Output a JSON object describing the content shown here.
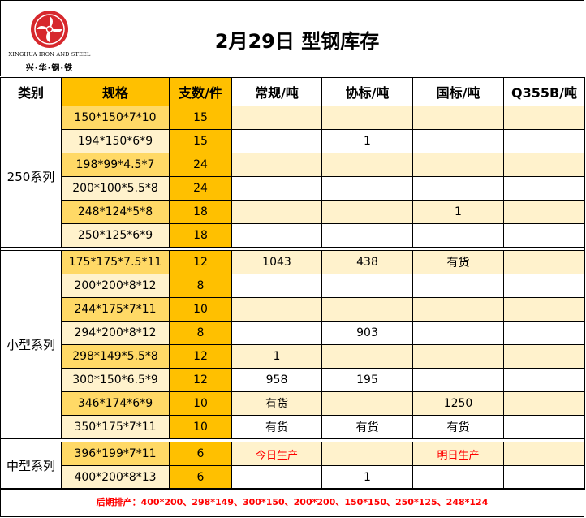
{
  "logo": {
    "name_en": "XINGHUA IRON AND STEEL",
    "name_cn": "兴·华·钢·铁"
  },
  "title": "2月29日 型钢库存",
  "headers": [
    "类别",
    "规格",
    "支数/件",
    "常规/吨",
    "协标/吨",
    "国标/吨",
    "Q355B/吨"
  ],
  "groups": [
    {
      "category": "250系列",
      "rows": [
        {
          "spec": "150*150*7*10",
          "count": "15",
          "regular": "",
          "assoc": "",
          "national": "",
          "q355b": ""
        },
        {
          "spec": "194*150*6*9",
          "count": "15",
          "regular": "",
          "assoc": "1",
          "national": "",
          "q355b": ""
        },
        {
          "spec": "198*99*4.5*7",
          "count": "24",
          "regular": "",
          "assoc": "",
          "national": "",
          "q355b": ""
        },
        {
          "spec": "200*100*5.5*8",
          "count": "24",
          "regular": "",
          "assoc": "",
          "national": "",
          "q355b": ""
        },
        {
          "spec": "248*124*5*8",
          "count": "18",
          "regular": "",
          "assoc": "",
          "national": "1",
          "q355b": ""
        },
        {
          "spec": "250*125*6*9",
          "count": "18",
          "regular": "",
          "assoc": "",
          "national": "",
          "q355b": ""
        }
      ]
    },
    {
      "category": "小型系列",
      "rows": [
        {
          "spec": "175*175*7.5*11",
          "count": "12",
          "regular": "1043",
          "assoc": "438",
          "national": "有货",
          "q355b": ""
        },
        {
          "spec": "200*200*8*12",
          "count": "8",
          "regular": "",
          "assoc": "",
          "national": "",
          "q355b": ""
        },
        {
          "spec": "244*175*7*11",
          "count": "10",
          "regular": "",
          "assoc": "",
          "national": "",
          "q355b": ""
        },
        {
          "spec": "294*200*8*12",
          "count": "8",
          "regular": "",
          "assoc": "903",
          "national": "",
          "q355b": ""
        },
        {
          "spec": "298*149*5.5*8",
          "count": "12",
          "regular": "1",
          "assoc": "",
          "national": "",
          "q355b": ""
        },
        {
          "spec": "300*150*6.5*9",
          "count": "12",
          "regular": "958",
          "assoc": "195",
          "national": "",
          "q355b": ""
        },
        {
          "spec": "346*174*6*9",
          "count": "10",
          "regular": "有货",
          "assoc": "",
          "national": "1250",
          "q355b": ""
        },
        {
          "spec": "350*175*7*11",
          "count": "10",
          "regular": "有货",
          "assoc": "有货",
          "national": "有货",
          "q355b": ""
        }
      ]
    },
    {
      "category": "中型系列",
      "rows": [
        {
          "spec": "396*199*7*11",
          "count": "6",
          "regular": "今日生产",
          "assoc": "",
          "national": "明日生产",
          "q355b": ""
        },
        {
          "spec": "400*200*8*13",
          "count": "6",
          "regular": "",
          "assoc": "1",
          "national": "",
          "q355b": ""
        }
      ]
    }
  ],
  "footer": "后期排产：400*200、298*149、300*150、200*200、150*150、250*125、248*124",
  "colors": {
    "accent": "#ffc000",
    "spec_fill": "#ffd966",
    "row_shade": "#fff2cc",
    "note_red": "#ff0000",
    "logo_red": "#d7282d"
  }
}
